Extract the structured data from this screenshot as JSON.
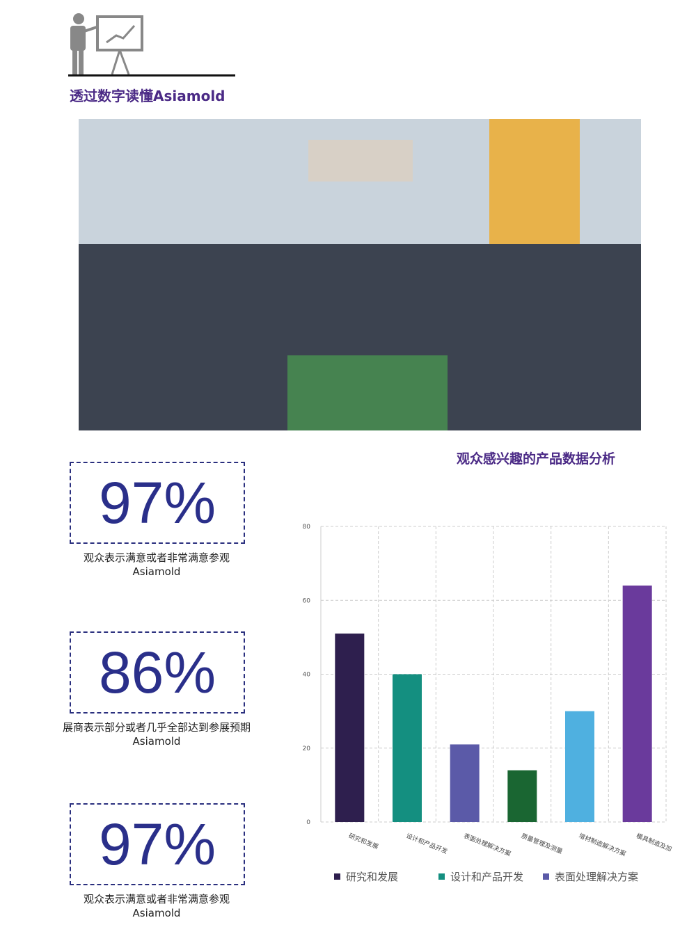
{
  "header": {
    "title": "透过数字读懂Asiamold"
  },
  "stats": [
    {
      "value": "97%",
      "caption": "观众表示满意或者非常满意参观Asiamold"
    },
    {
      "value": "86%",
      "caption": "展商表示部分或者几乎全部达到参展预期Asiamold"
    },
    {
      "value": "97%",
      "caption": "观众表示满意或者非常满意参观Asiamold"
    }
  ],
  "chart_data": {
    "type": "bar",
    "title": "观众感兴趣的产品数据分析",
    "categories": [
      "研究和发展",
      "设计和产品开发",
      "表面处理解决方案",
      "质量管理及测量",
      "增材制造解决方案",
      "模具制造及加"
    ],
    "values": [
      51,
      40,
      21,
      14,
      30,
      64
    ],
    "colors": [
      "#2e1f4e",
      "#148f80",
      "#5b5aa8",
      "#1a6632",
      "#4fb0e0",
      "#6a3a9c"
    ],
    "ylim": [
      0,
      80
    ],
    "yticks": [
      0,
      20,
      40,
      60,
      80
    ],
    "grid": true,
    "legend": [
      "研究和发展",
      "设计和产品开发",
      "表面处理解决方案"
    ]
  }
}
